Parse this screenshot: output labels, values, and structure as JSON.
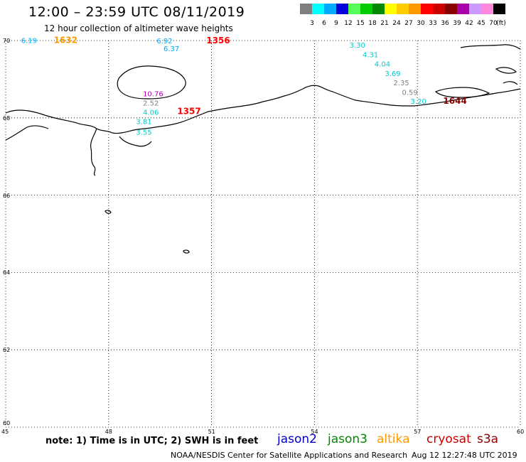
{
  "header": {
    "title": "12:00 – 23:59 UTC 08/11/2019",
    "subtitle": "12 hour collection of altimeter wave heights"
  },
  "colorbar": {
    "unit_label": "(ft)",
    "items": [
      {
        "color": "#7f7f7f",
        "label": "3"
      },
      {
        "color": "#00ffff",
        "label": "6"
      },
      {
        "color": "#00aaff",
        "label": "9"
      },
      {
        "color": "#0000dd",
        "label": "12"
      },
      {
        "color": "#55ff55",
        "label": "15"
      },
      {
        "color": "#00cc00",
        "label": "18"
      },
      {
        "color": "#008800",
        "label": "21"
      },
      {
        "color": "#ffff00",
        "label": "24"
      },
      {
        "color": "#ffcc00",
        "label": "27"
      },
      {
        "color": "#ff9900",
        "label": "30"
      },
      {
        "color": "#ff0000",
        "label": "33"
      },
      {
        "color": "#cc0000",
        "label": "36"
      },
      {
        "color": "#880000",
        "label": "39"
      },
      {
        "color": "#aa00aa",
        "label": "42"
      },
      {
        "color": "#cc99ff",
        "label": "45"
      },
      {
        "color": "#ff88dd",
        "label": "70"
      },
      {
        "color": "#000000",
        "label": ""
      }
    ]
  },
  "axes": {
    "lon_labels": [
      "45",
      "48",
      "51",
      "54",
      "57",
      "60"
    ],
    "lat_labels": [
      "70",
      "68",
      "66",
      "64",
      "62",
      "60"
    ]
  },
  "observations": [
    {
      "text": "6.19",
      "color": "#00aaff",
      "lon": 45.45,
      "lat": 69.94
    },
    {
      "text": "1632",
      "color": "#ff9900",
      "lon": 46.4,
      "lat": 69.94
    },
    {
      "text": "6.92",
      "color": "#00aaff",
      "lon": 49.4,
      "lat": 69.93
    },
    {
      "text": "6.37",
      "color": "#00aaff",
      "lon": 49.6,
      "lat": 69.72
    },
    {
      "text": "1356",
      "color": "#ff0000",
      "lon": 50.85,
      "lat": 69.93
    },
    {
      "text": "3.30",
      "color": "#00cccc",
      "lon": 55.02,
      "lat": 69.82
    },
    {
      "text": "4.31",
      "color": "#00cccc",
      "lon": 55.4,
      "lat": 69.57
    },
    {
      "text": "4.04",
      "color": "#00cccc",
      "lon": 55.75,
      "lat": 69.33
    },
    {
      "text": "3.69",
      "color": "#00cccc",
      "lon": 56.05,
      "lat": 69.08
    },
    {
      "text": "2.35",
      "color": "#808080",
      "lon": 56.3,
      "lat": 68.84
    },
    {
      "text": "0.59",
      "color": "#808080",
      "lon": 56.55,
      "lat": 68.59
    },
    {
      "text": "3.20",
      "color": "#00cccc",
      "lon": 56.8,
      "lat": 68.36
    },
    {
      "text": "1644",
      "color": "#880000",
      "lon": 57.75,
      "lat": 68.36
    },
    {
      "text": "10.76",
      "color": "#aa00aa",
      "lon": 49.0,
      "lat": 68.56
    },
    {
      "text": "2.52",
      "color": "#808080",
      "lon": 49.0,
      "lat": 68.32
    },
    {
      "text": "4.06",
      "color": "#00cccc",
      "lon": 49.0,
      "lat": 68.08
    },
    {
      "text": "1357",
      "color": "#ff0000",
      "lon": 50.0,
      "lat": 68.1
    },
    {
      "text": "3.81",
      "color": "#00cccc",
      "lon": 48.8,
      "lat": 67.84
    },
    {
      "text": "3.55",
      "color": "#00cccc",
      "lon": 48.8,
      "lat": 67.56
    }
  ],
  "footer": {
    "note": "note:  1) Time is in UTC;  2) SWH is in feet",
    "legend": [
      {
        "text": "jason2",
        "color": "#0000cc"
      },
      {
        "text": "jason3",
        "color": "#008800"
      },
      {
        "text": "altika",
        "color": "#ff9900"
      },
      {
        "text": "cryosat",
        "color": "#cc0000"
      },
      {
        "text": "s3a",
        "color": "#880000"
      }
    ],
    "credit": "NOAA/NESDIS Center for Satellite Applications and Research",
    "timestamp": "Aug 12 12:27:48 UTC 2019"
  }
}
